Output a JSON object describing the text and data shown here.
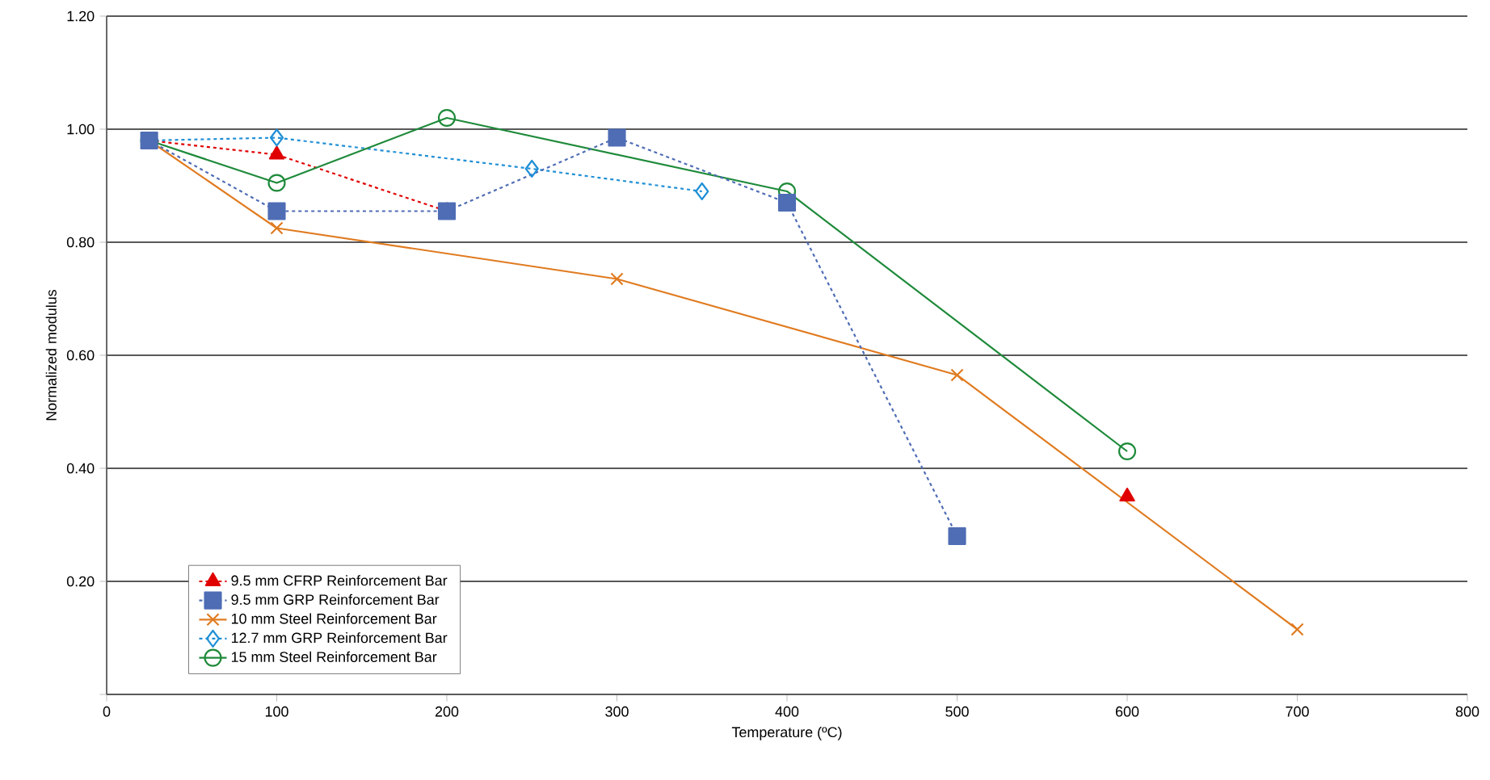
{
  "chart_data": {
    "type": "line",
    "xlabel": "Temperature (ºC)",
    "ylabel": "Normalized modulus",
    "xlim": [
      0,
      800
    ],
    "xticks": [
      0,
      100,
      200,
      300,
      400,
      500,
      600,
      700,
      800
    ],
    "ylim": [
      0,
      1.2
    ],
    "yticks": [
      {
        "value": 0,
        "label": null
      },
      {
        "value": 0.2,
        "label": "0.20"
      },
      {
        "value": 0.4,
        "label": "0.40"
      },
      {
        "value": 0.6,
        "label": "0.60"
      },
      {
        "value": 0.8,
        "label": "0.80"
      },
      {
        "value": 1.0,
        "label": "1.00"
      },
      {
        "value": 1.2,
        "label": "1.20"
      }
    ],
    "grid": "y",
    "legend": "bottom left",
    "series": [
      {
        "name": "9.5 mm CFRP Reinforcement Bar",
        "color": "#e00000",
        "marker": "triangle",
        "line_style": "dotted",
        "x": [
          25,
          100,
          200,
          400,
          600
        ],
        "values": [
          0.98,
          0.955,
          0.855,
          null,
          0.35
        ]
      },
      {
        "name": "9.5 mm GRP Reinforcement Bar",
        "color": "#4f6db5",
        "marker": "square",
        "line_style": "dotted",
        "x": [
          25,
          100,
          200,
          300,
          400,
          500
        ],
        "values": [
          0.98,
          0.855,
          0.855,
          0.985,
          0.87,
          0.28
        ]
      },
      {
        "name": "10 mm Steel Reinforcement Bar",
        "color": "#e07b20",
        "marker": "cross",
        "line_style": "solid",
        "x": [
          25,
          100,
          300,
          500,
          700
        ],
        "values": [
          0.98,
          0.825,
          0.735,
          0.565,
          0.115
        ]
      },
      {
        "name": "12.7 mm GRP Reinforcement Bar",
        "color": "#1f8fd6",
        "marker": "diamond",
        "line_style": "dotted",
        "x": [
          25,
          100,
          250,
          350
        ],
        "values": [
          0.98,
          0.985,
          0.93,
          0.89
        ]
      },
      {
        "name": "15 mm Steel Reinforcement Bar",
        "color": "#1e8a3a",
        "marker": "circle",
        "line_style": "solid",
        "x": [
          25,
          100,
          200,
          400,
          600
        ],
        "values": [
          0.98,
          0.905,
          1.02,
          0.89,
          0.43
        ]
      }
    ]
  }
}
